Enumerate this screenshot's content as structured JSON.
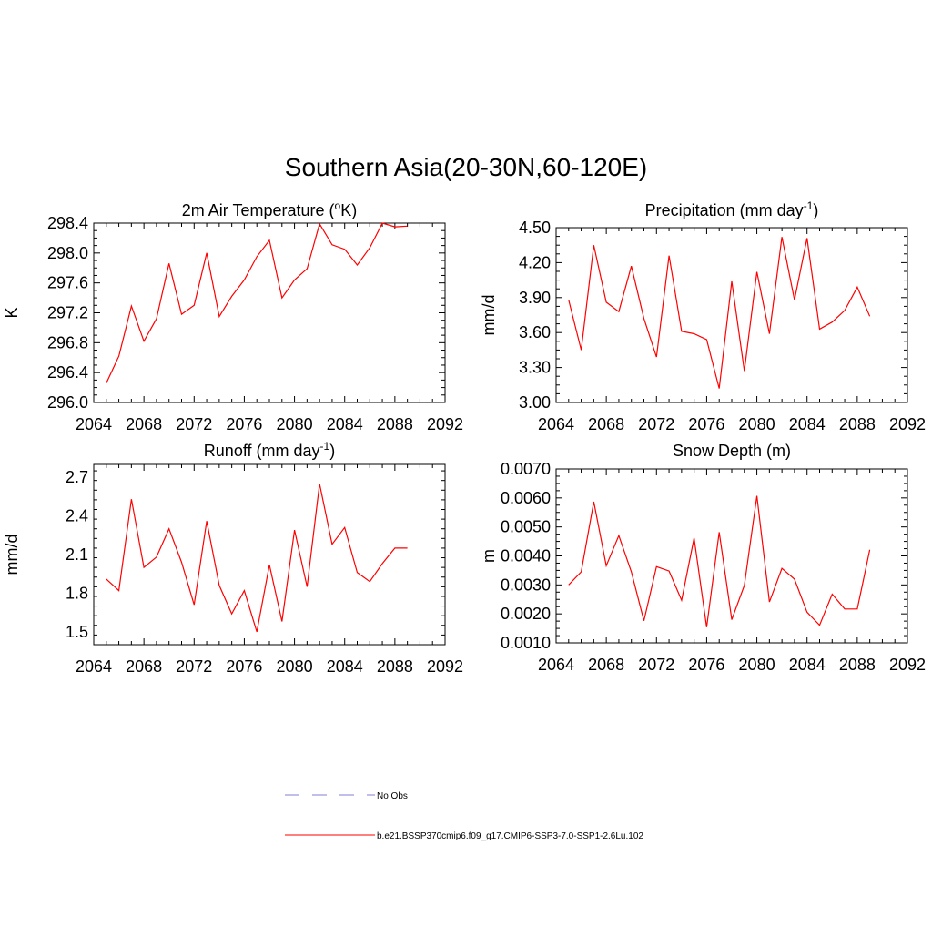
{
  "figure": {
    "title": "Southern Asia(20-30N,60-120E)"
  },
  "legend": {
    "entries": [
      {
        "label": "No Obs",
        "color": "#9999dd",
        "style": "dashed"
      },
      {
        "label": "b.e21.BSSP370cmip6.f09_g17.CMIP6-SSP3-7.0-SSP1-2.6Lu.102",
        "color": "#ff3333",
        "style": "solid"
      }
    ]
  },
  "chart_data": [
    {
      "type": "line",
      "title_main": "2m Air Temperature (",
      "title_sup": "o",
      "title_end": "K)",
      "ylabel": "K",
      "xlim": [
        2064,
        2092
      ],
      "ylim": [
        296.0,
        298.4
      ],
      "xticks": [
        2064,
        2068,
        2072,
        2076,
        2080,
        2084,
        2088,
        2092
      ],
      "yticks": [
        296.0,
        296.4,
        296.8,
        297.2,
        297.6,
        298.0,
        298.4
      ],
      "ytick_labels": [
        "296.0",
        "296.4",
        "296.8",
        "297.2",
        "297.6",
        "298.0",
        "298.4"
      ],
      "x": [
        2065,
        2066,
        2067,
        2068,
        2069,
        2070,
        2071,
        2072,
        2073,
        2074,
        2075,
        2076,
        2077,
        2078,
        2079,
        2080,
        2081,
        2082,
        2083,
        2084,
        2085,
        2086,
        2087,
        2088,
        2089
      ],
      "series": [
        {
          "color": "#ff0000",
          "values": [
            296.26,
            296.62,
            297.29,
            296.82,
            297.12,
            297.86,
            297.18,
            297.3,
            298.0,
            297.15,
            297.42,
            297.64,
            297.95,
            298.17,
            297.4,
            297.64,
            297.79,
            298.39,
            298.11,
            298.05,
            297.84,
            298.07,
            298.4,
            298.35,
            298.36
          ]
        }
      ]
    },
    {
      "type": "line",
      "title_main": "Precipitation (mm day",
      "title_sup": "-1",
      "title_end": ")",
      "ylabel": "mm/d",
      "xlim": [
        2064,
        2092
      ],
      "ylim": [
        3.0,
        4.5
      ],
      "xticks": [
        2064,
        2068,
        2072,
        2076,
        2080,
        2084,
        2088,
        2092
      ],
      "yticks": [
        3.0,
        3.3,
        3.6,
        3.9,
        4.2,
        4.5
      ],
      "ytick_labels": [
        "3.00",
        "3.30",
        "3.60",
        "3.90",
        "4.20",
        "4.50"
      ],
      "x": [
        2065,
        2066,
        2067,
        2068,
        2069,
        2070,
        2071,
        2072,
        2073,
        2074,
        2075,
        2076,
        2077,
        2078,
        2079,
        2080,
        2081,
        2082,
        2083,
        2084,
        2085,
        2086,
        2087,
        2088,
        2089
      ],
      "series": [
        {
          "color": "#ff0000",
          "values": [
            3.88,
            3.45,
            4.35,
            3.86,
            3.78,
            4.17,
            3.72,
            3.39,
            4.26,
            3.61,
            3.59,
            3.54,
            3.12,
            4.04,
            3.27,
            4.12,
            3.59,
            4.42,
            3.88,
            4.41,
            3.63,
            3.69,
            3.79,
            3.99,
            3.74
          ]
        }
      ]
    },
    {
      "type": "line",
      "title_main": "Runoff (mm day",
      "title_sup": "-1",
      "title_end": ")",
      "ylabel": "mm/d",
      "xlim": [
        2064,
        2092
      ],
      "ylim": [
        1.4,
        2.8
      ],
      "xticks": [
        2064,
        2068,
        2072,
        2076,
        2080,
        2084,
        2088,
        2092
      ],
      "yticks": [
        1.5,
        1.8,
        2.1,
        2.4,
        2.7
      ],
      "ytick_labels": [
        "1.5",
        "1.8",
        "2.1",
        "2.4",
        "2.7"
      ],
      "x": [
        2065,
        2066,
        2067,
        2068,
        2069,
        2070,
        2071,
        2072,
        2073,
        2074,
        2075,
        2076,
        2077,
        2078,
        2079,
        2080,
        2081,
        2082,
        2083,
        2084,
        2085,
        2086,
        2087,
        2088,
        2089
      ],
      "series": [
        {
          "color": "#ff0000",
          "values": [
            1.91,
            1.82,
            2.53,
            2.0,
            2.08,
            2.3,
            2.04,
            1.71,
            2.36,
            1.86,
            1.64,
            1.82,
            1.5,
            2.02,
            1.58,
            2.29,
            1.85,
            2.65,
            2.18,
            2.31,
            1.96,
            1.89,
            2.03,
            2.15,
            2.15
          ]
        }
      ]
    },
    {
      "type": "line",
      "title_main": "Snow Depth (m)",
      "title_sup": "",
      "title_end": "",
      "ylabel": "m",
      "xlim": [
        2064,
        2092
      ],
      "ylim": [
        0.001,
        0.007
      ],
      "xticks": [
        2064,
        2068,
        2072,
        2076,
        2080,
        2084,
        2088,
        2092
      ],
      "yticks": [
        0.001,
        0.002,
        0.003,
        0.004,
        0.005,
        0.006,
        0.007
      ],
      "ytick_labels": [
        "0.0010",
        "0.0020",
        "0.0030",
        "0.0040",
        "0.0050",
        "0.0060",
        "0.0070"
      ],
      "x": [
        2065,
        2066,
        2067,
        2068,
        2069,
        2070,
        2071,
        2072,
        2073,
        2074,
        2075,
        2076,
        2077,
        2078,
        2079,
        2080,
        2081,
        2082,
        2083,
        2084,
        2085,
        2086,
        2087,
        2088,
        2089
      ],
      "series": [
        {
          "color": "#ff0000",
          "values": [
            0.003,
            0.00345,
            0.00587,
            0.00366,
            0.0047,
            0.00345,
            0.00176,
            0.00363,
            0.00348,
            0.00247,
            0.00462,
            0.00154,
            0.00482,
            0.0018,
            0.00298,
            0.00607,
            0.00241,
            0.00357,
            0.0032,
            0.00206,
            0.00161,
            0.00268,
            0.00217,
            0.00217,
            0.00421
          ]
        }
      ]
    }
  ]
}
